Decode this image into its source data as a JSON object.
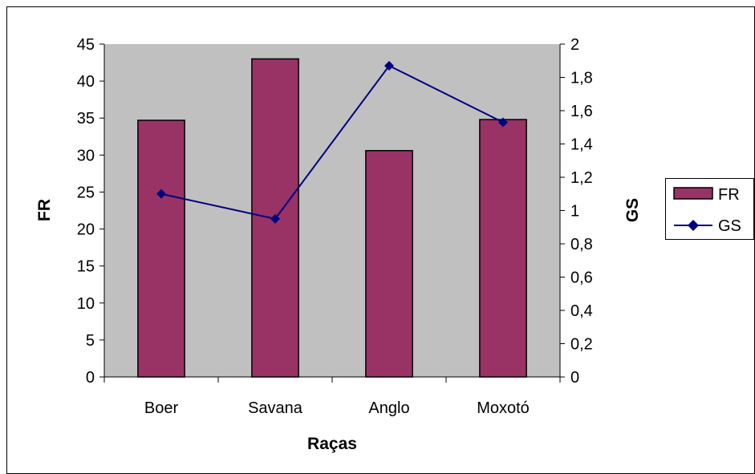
{
  "chart_data": {
    "type": "bar",
    "categories": [
      "Boer",
      "Savana",
      "Anglo",
      "Moxotó"
    ],
    "series": [
      {
        "name": "FR",
        "type": "bar",
        "axis": "left",
        "values": [
          34.7,
          43.0,
          30.6,
          34.8
        ],
        "color": "#993366"
      },
      {
        "name": "GS",
        "type": "line",
        "axis": "right",
        "values": [
          1.1,
          0.95,
          1.87,
          1.53
        ],
        "color": "#000080",
        "marker": "diamond"
      }
    ],
    "xlabel": "Raças",
    "ylabel": "FR",
    "y2label": "GS",
    "ylim": [
      0,
      45
    ],
    "y2lim": [
      0,
      2
    ],
    "yticks": [
      "0",
      "5",
      "10",
      "15",
      "20",
      "25",
      "30",
      "35",
      "40",
      "45"
    ],
    "y2ticks": [
      "0",
      "0,2",
      "0,4",
      "0,6",
      "0,8",
      "1",
      "1,2",
      "1,4",
      "1,6",
      "1,8",
      "2"
    ],
    "plot_background": "#C0C0C0",
    "grid": false,
    "legend_position": "right"
  }
}
